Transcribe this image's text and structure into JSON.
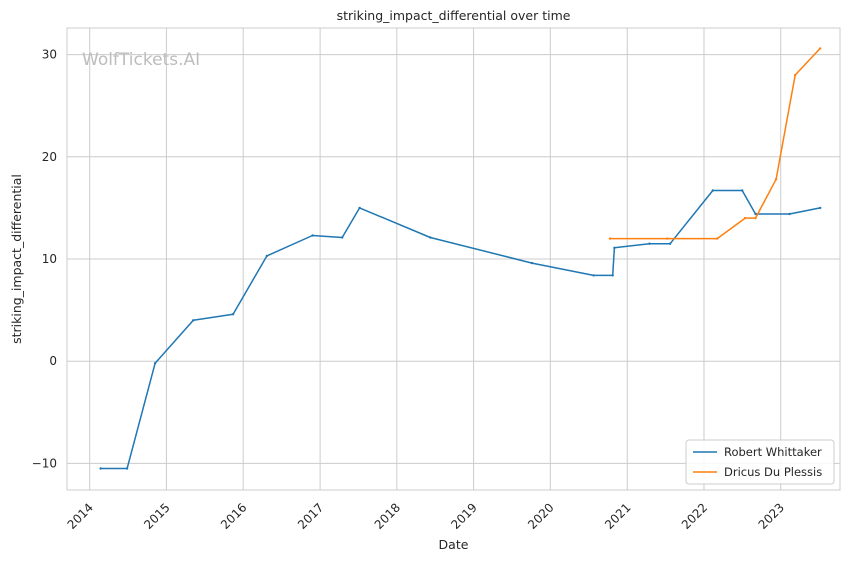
{
  "chart_data": {
    "type": "line",
    "title": "striking_impact_differential over time",
    "xlabel": "Date",
    "ylabel": "striking_impact_differential",
    "watermark": "WolfTickets.AI",
    "xlim": [
      "2013-09-15",
      "2023-10-10"
    ],
    "ylim": [
      -12.6,
      32.6
    ],
    "x_ticks": [
      "2014",
      "2015",
      "2016",
      "2017",
      "2018",
      "2019",
      "2020",
      "2021",
      "2022",
      "2023"
    ],
    "y_ticks": [
      -10,
      0,
      10,
      20,
      30
    ],
    "grid": true,
    "legend_position": "bottom-right",
    "series": [
      {
        "name": "Robert Whittaker",
        "color": "#1f77b4",
        "points": [
          [
            "2014-02-22",
            -10.5
          ],
          [
            "2014-06-28",
            -10.5
          ],
          [
            "2014-11-08",
            -0.2
          ],
          [
            "2015-05-09",
            4.0
          ],
          [
            "2015-11-14",
            4.6
          ],
          [
            "2016-04-23",
            10.3
          ],
          [
            "2016-11-26",
            12.3
          ],
          [
            "2017-04-16",
            12.1
          ],
          [
            "2017-07-08",
            15.0
          ],
          [
            "2018-06-09",
            12.1
          ],
          [
            "2019-10-06",
            9.6
          ],
          [
            "2020-07-25",
            8.4
          ],
          [
            "2020-10-24",
            8.4
          ],
          [
            "2020-11-01",
            11.1
          ],
          [
            "2021-04-17",
            11.5
          ],
          [
            "2021-07-24",
            11.5
          ],
          [
            "2022-02-12",
            16.7
          ],
          [
            "2022-07-02",
            16.7
          ],
          [
            "2022-09-03",
            14.4
          ],
          [
            "2023-02-12",
            14.4
          ],
          [
            "2023-07-08",
            15.0
          ]
        ]
      },
      {
        "name": "Dricus Du Plessis",
        "color": "#ff7f0e",
        "points": [
          [
            "2020-10-11",
            12.0
          ],
          [
            "2021-07-10",
            12.0
          ],
          [
            "2022-03-05",
            12.0
          ],
          [
            "2022-07-16",
            14.0
          ],
          [
            "2022-09-03",
            14.0
          ],
          [
            "2022-12-10",
            17.8
          ],
          [
            "2023-03-11",
            28.0
          ],
          [
            "2023-07-08",
            30.6
          ]
        ]
      }
    ]
  }
}
